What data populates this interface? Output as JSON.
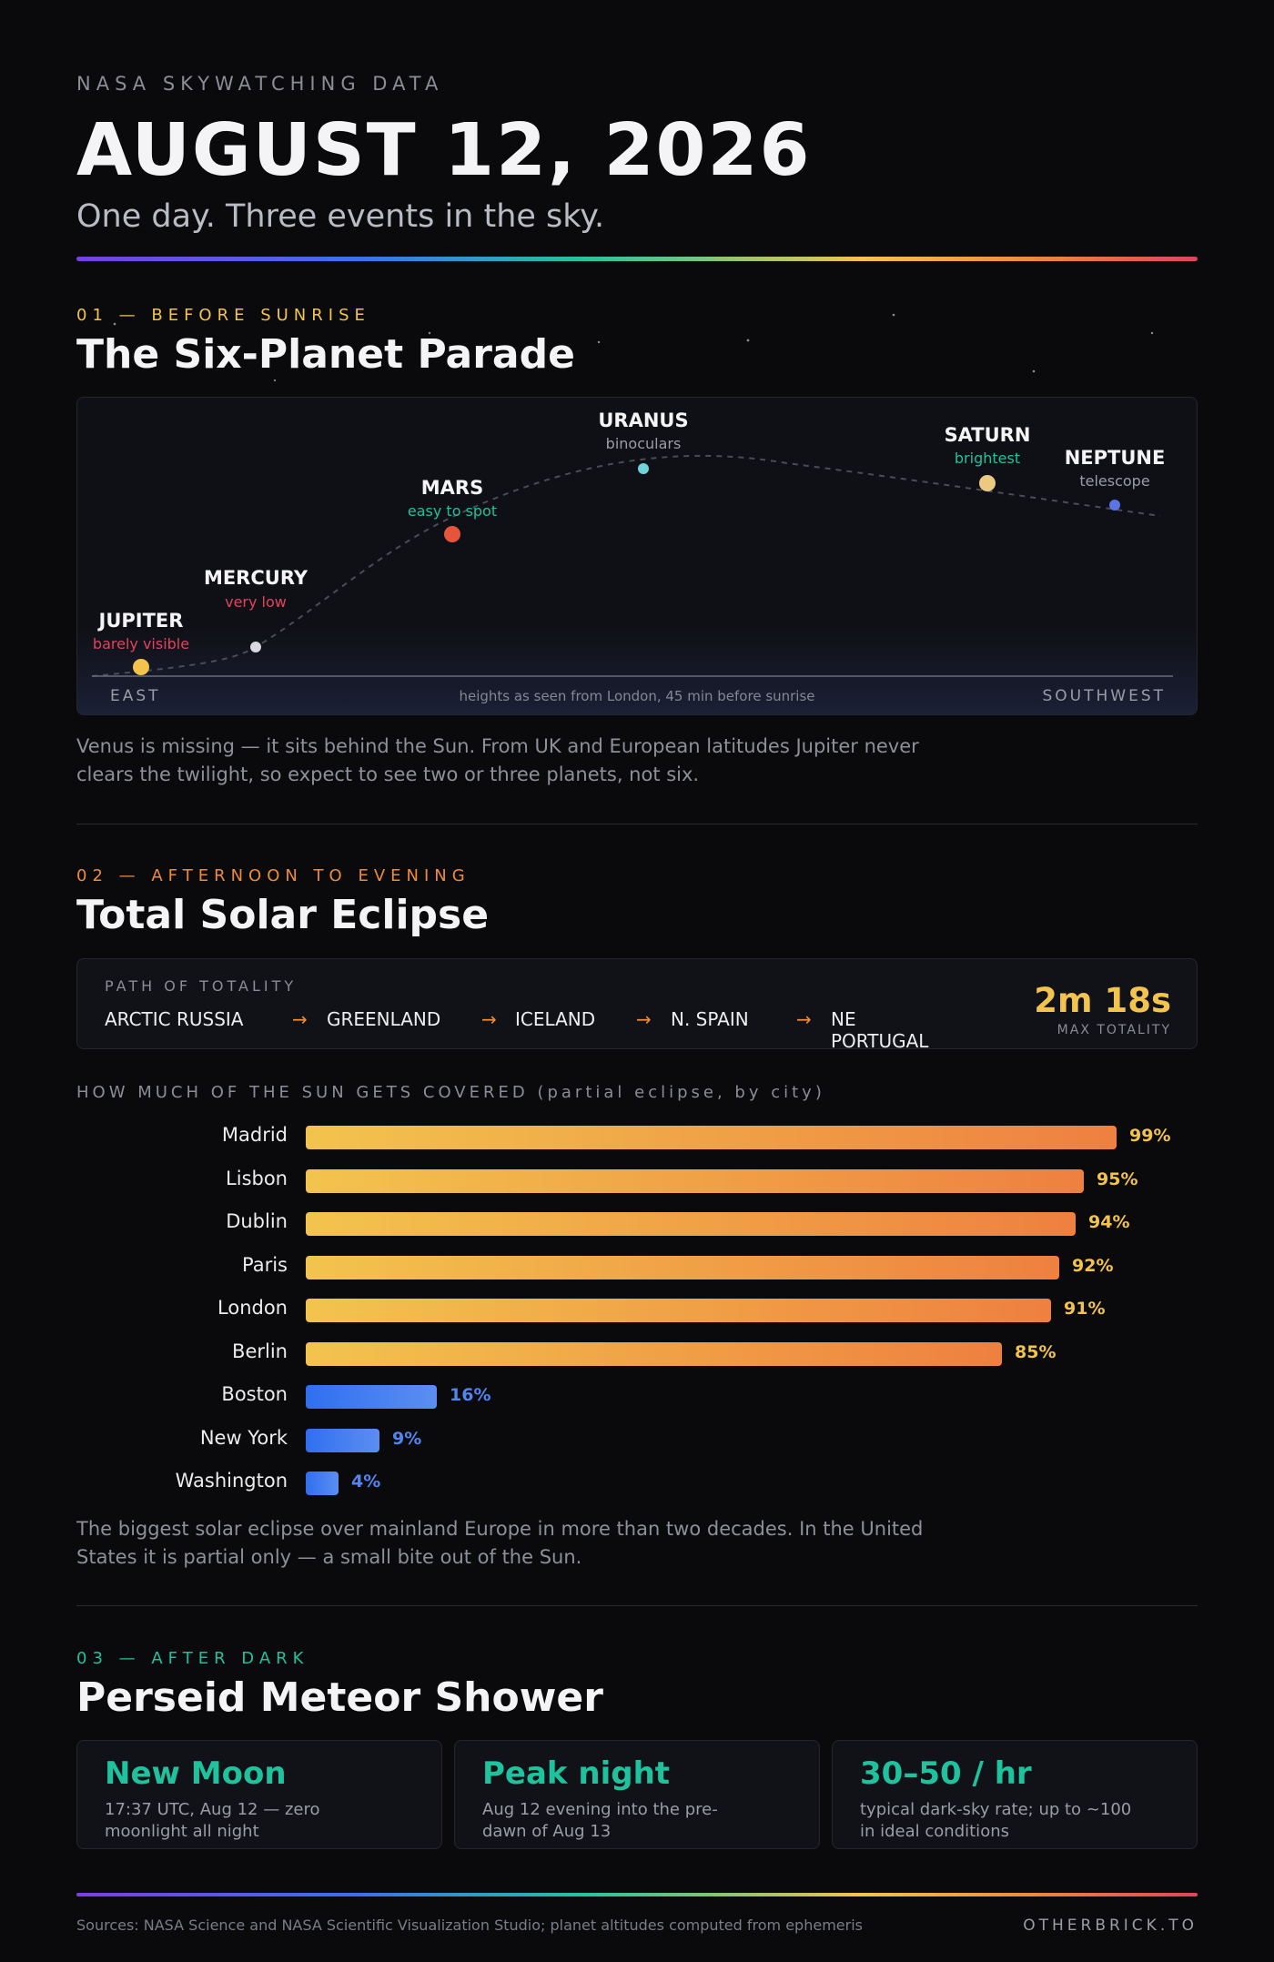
{
  "header": {
    "kicker": "NASA SKYWATCHING DATA",
    "title": "AUGUST 12, 2026",
    "subtitle": "One day. Three events in the sky."
  },
  "section1": {
    "kicker": "01 — BEFORE SUNRISE",
    "title": "The Six-Planet Parade",
    "planets": [
      {
        "name": "JUPITER",
        "tag": "barely visible",
        "tag_color": "#e0435e",
        "dot_color": "#f2c44d"
      },
      {
        "name": "MERCURY",
        "tag": "very low",
        "tag_color": "#e0435e",
        "dot_color": "#d9d9df"
      },
      {
        "name": "MARS",
        "tag": "easy to spot",
        "tag_color": "#1fc29d",
        "dot_color": "#e4553c"
      },
      {
        "name": "URANUS",
        "tag": "binoculars",
        "tag_color": "#9a9da6",
        "dot_color": "#6fd3dc"
      },
      {
        "name": "SATURN",
        "tag": "brightest",
        "tag_color": "#1fc29d",
        "dot_color": "#ecc983"
      },
      {
        "name": "NEPTUNE",
        "tag": "telescope",
        "tag_color": "#9a9da6",
        "dot_color": "#5b74e8"
      }
    ],
    "east_label": "EAST",
    "southwest_label": "SOUTHWEST",
    "axis_note": "heights as seen from London, 45 min before sunrise",
    "note": "Venus is missing — it sits behind the Sun. From UK and European latitudes Jupiter never clears the twilight, so expect to see two or three planets, not six."
  },
  "section2": {
    "kicker": "02 — AFTERNOON TO EVENING",
    "title": "Total Solar Eclipse",
    "path_label": "PATH OF TOTALITY",
    "path_stops": [
      "ARCTIC RUSSIA",
      "GREENLAND",
      "ICELAND",
      "N. SPAIN",
      "NE PORTUGAL"
    ],
    "arrow": "→",
    "max_totality": "2m 18s",
    "max_totality_label": "MAX TOTALITY",
    "coverage_heading": "HOW MUCH OF THE SUN GETS COVERED (partial eclipse, by city)",
    "note": "The biggest solar eclipse over mainland Europe in more than two decades. In the United States it is partial only — a small bite out of the Sun."
  },
  "chart_data": {
    "type": "bar",
    "orientation": "horizontal",
    "title": "HOW MUCH OF THE SUN GETS COVERED (partial eclipse, by city)",
    "categories": [
      "Madrid",
      "Lisbon",
      "Dublin",
      "Paris",
      "London",
      "Berlin",
      "Boston",
      "New York",
      "Washington"
    ],
    "values": [
      99,
      95,
      94,
      92,
      91,
      85,
      16,
      9,
      4
    ],
    "labels": [
      "99%",
      "95%",
      "94%",
      "92%",
      "91%",
      "85%",
      "16%",
      "9%",
      "4%"
    ],
    "unit": "%",
    "xlim": [
      0,
      100
    ],
    "colors": {
      "europe": "#f2c44d",
      "europe_end": "#ee8040",
      "us": "#2f6ff0",
      "us_end": "#5b8ef0",
      "europe_label": "#f2c44d",
      "us_label": "#4f86f2"
    }
  },
  "section3": {
    "kicker": "03 — AFTER DARK",
    "title": "Perseid Meteor Shower",
    "cards": [
      {
        "head": "New Moon",
        "text": "17:37 UTC, Aug 12 — zero moonlight all night"
      },
      {
        "head": "Peak night",
        "text": "Aug 12 evening into the pre-dawn of Aug 13"
      },
      {
        "head": "30–50 / hr",
        "text": "typical dark-sky rate; up to ~100 in ideal conditions"
      }
    ]
  },
  "footer": {
    "sources": "Sources: NASA Science and NASA Scientific Visualization Studio; planet altitudes computed from ephemeris",
    "brand": "OTHERBRICK.TO"
  },
  "colors": {
    "section1_kicker": "#f2c44d",
    "section2_kicker": "#ee8b3a",
    "section3_kicker": "#1fc29d"
  }
}
